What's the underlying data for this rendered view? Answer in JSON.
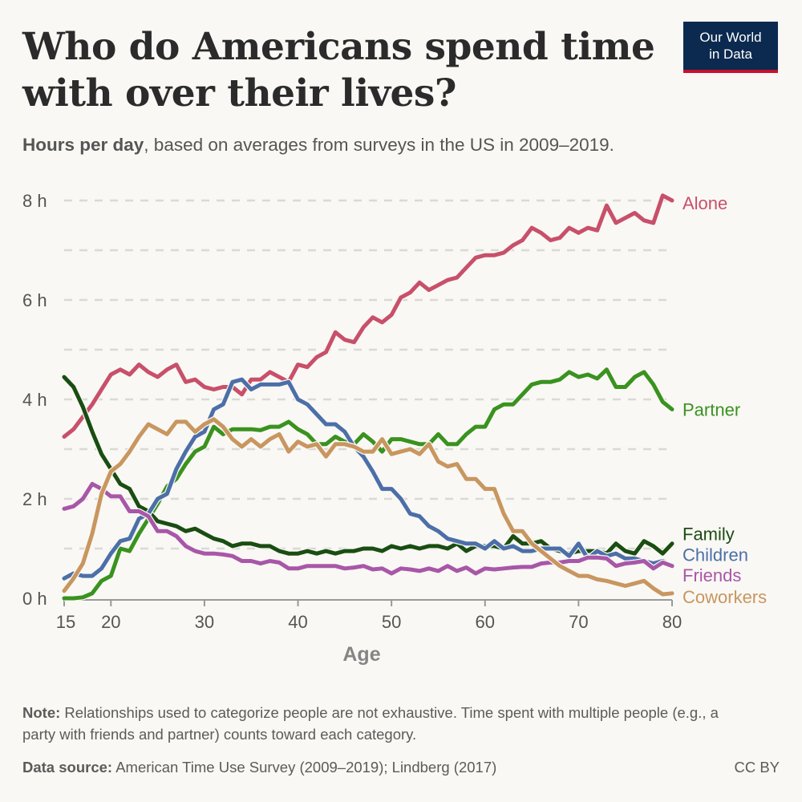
{
  "title": "Who do Americans spend time with over their lives?",
  "subtitle_bold": "Hours per day",
  "subtitle_rest": ", based on averages from surveys in the US in 2009–2019.",
  "logo": {
    "line1": "Our World",
    "line2": "in Data"
  },
  "note_label": "Note:",
  "note_text": " Relationships used to categorize people are not exhaustive. Time spent with multiple people (e.g., a party with friends and partner) counts toward each category.",
  "source_label": "Data source:",
  "source_text": " American Time Use Survey (2009–2019); Lindberg (2017)",
  "license": "CC BY",
  "chart_data": {
    "type": "line",
    "title": "Who do Americans spend time with over their lives?",
    "xlabel": "Age",
    "ylabel": "",
    "xlim": [
      15,
      80
    ],
    "ylim": [
      0,
      8
    ],
    "x_ticks": [
      15,
      20,
      30,
      40,
      50,
      60,
      70,
      80
    ],
    "y_ticks": [
      {
        "v": 0,
        "label": "0 h"
      },
      {
        "v": 2,
        "label": "2 h"
      },
      {
        "v": 4,
        "label": "4 h"
      },
      {
        "v": 6,
        "label": "6 h"
      },
      {
        "v": 8,
        "label": "8 h"
      }
    ],
    "grid": true,
    "legend": "inline-right",
    "x": [
      15,
      16,
      17,
      18,
      19,
      20,
      21,
      22,
      23,
      24,
      25,
      26,
      27,
      28,
      29,
      30,
      31,
      32,
      33,
      34,
      35,
      36,
      37,
      38,
      39,
      40,
      41,
      42,
      43,
      44,
      45,
      46,
      47,
      48,
      49,
      50,
      51,
      52,
      53,
      54,
      55,
      56,
      57,
      58,
      59,
      60,
      61,
      62,
      63,
      64,
      65,
      66,
      67,
      68,
      69,
      70,
      71,
      72,
      73,
      74,
      75,
      76,
      77,
      78,
      79,
      80
    ],
    "series": [
      {
        "name": "Alone",
        "color": "#c8506a",
        "label_y": 7.95,
        "values": [
          3.25,
          3.4,
          3.65,
          3.9,
          4.2,
          4.5,
          4.6,
          4.5,
          4.7,
          4.55,
          4.45,
          4.6,
          4.7,
          4.35,
          4.4,
          4.25,
          4.2,
          4.25,
          4.25,
          4.1,
          4.4,
          4.4,
          4.55,
          4.45,
          4.35,
          4.7,
          4.65,
          4.85,
          4.95,
          5.35,
          5.2,
          5.15,
          5.45,
          5.65,
          5.55,
          5.7,
          6.05,
          6.15,
          6.35,
          6.2,
          6.3,
          6.4,
          6.45,
          6.65,
          6.85,
          6.9,
          6.9,
          6.95,
          7.1,
          7.2,
          7.45,
          7.35,
          7.2,
          7.25,
          7.45,
          7.35,
          7.45,
          7.4,
          7.9,
          7.55,
          7.65,
          7.75,
          7.6,
          7.55,
          8.1,
          8.0
        ]
      },
      {
        "name": "Partner",
        "color": "#3a921f",
        "label_y": 3.8,
        "values": [
          0,
          0,
          0.02,
          0.1,
          0.35,
          0.45,
          1.0,
          0.95,
          1.3,
          1.6,
          1.9,
          2.25,
          2.4,
          2.7,
          2.95,
          3.05,
          3.45,
          3.3,
          3.4,
          3.4,
          3.4,
          3.38,
          3.45,
          3.45,
          3.55,
          3.4,
          3.3,
          3.1,
          3.1,
          3.25,
          3.15,
          3.1,
          3.3,
          3.15,
          2.95,
          3.2,
          3.2,
          3.15,
          3.1,
          3.1,
          3.3,
          3.1,
          3.1,
          3.3,
          3.45,
          3.45,
          3.8,
          3.9,
          3.9,
          4.1,
          4.3,
          4.35,
          4.35,
          4.4,
          4.55,
          4.45,
          4.5,
          4.42,
          4.6,
          4.25,
          4.25,
          4.45,
          4.55,
          4.3,
          3.95,
          3.8
        ]
      },
      {
        "name": "Family",
        "color": "#1a4d12",
        "label_y": 1.3,
        "values": [
          4.45,
          4.25,
          3.85,
          3.35,
          2.9,
          2.6,
          2.3,
          2.2,
          1.85,
          1.75,
          1.55,
          1.5,
          1.45,
          1.35,
          1.4,
          1.3,
          1.2,
          1.15,
          1.05,
          1.1,
          1.1,
          1.05,
          1.05,
          0.95,
          0.9,
          0.9,
          0.95,
          0.9,
          0.95,
          0.9,
          0.95,
          0.95,
          1.0,
          1.0,
          0.95,
          1.05,
          1.0,
          1.05,
          1.0,
          1.05,
          1.05,
          1.0,
          1.1,
          0.95,
          1.05,
          1.05,
          1.05,
          1.0,
          1.25,
          1.1,
          1.1,
          1.15,
          1.0,
          0.95,
          0.9,
          0.95,
          0.95,
          0.95,
          0.9,
          1.1,
          0.95,
          0.9,
          1.15,
          1.05,
          0.9,
          1.1
        ]
      },
      {
        "name": "Children",
        "color": "#4c6fa8",
        "label_y": 0.88,
        "values": [
          0.4,
          0.5,
          0.45,
          0.45,
          0.6,
          0.9,
          1.15,
          1.2,
          1.6,
          1.7,
          2.0,
          2.1,
          2.6,
          2.95,
          3.25,
          3.35,
          3.8,
          3.9,
          4.35,
          4.4,
          4.2,
          4.3,
          4.3,
          4.3,
          4.35,
          4.0,
          3.9,
          3.7,
          3.5,
          3.5,
          3.35,
          3.05,
          2.85,
          2.55,
          2.2,
          2.2,
          2.0,
          1.7,
          1.65,
          1.45,
          1.35,
          1.2,
          1.15,
          1.1,
          1.1,
          1.0,
          1.15,
          1.0,
          1.05,
          0.95,
          0.95,
          1.0,
          1.0,
          1.0,
          0.85,
          1.1,
          0.8,
          0.95,
          0.85,
          0.9,
          0.8,
          0.8,
          0.75,
          0.7,
          0.75,
          0.65
        ]
      },
      {
        "name": "Friends",
        "color": "#a857a8",
        "label_y": 0.47,
        "values": [
          1.8,
          1.85,
          2.0,
          2.3,
          2.2,
          2.05,
          2.05,
          1.75,
          1.75,
          1.65,
          1.35,
          1.35,
          1.25,
          1.05,
          0.95,
          0.9,
          0.9,
          0.88,
          0.85,
          0.75,
          0.75,
          0.7,
          0.75,
          0.72,
          0.6,
          0.6,
          0.65,
          0.65,
          0.65,
          0.65,
          0.6,
          0.62,
          0.65,
          0.58,
          0.6,
          0.5,
          0.6,
          0.58,
          0.55,
          0.6,
          0.55,
          0.65,
          0.55,
          0.62,
          0.5,
          0.6,
          0.58,
          0.6,
          0.62,
          0.63,
          0.63,
          0.7,
          0.72,
          0.72,
          0.75,
          0.75,
          0.82,
          0.82,
          0.8,
          0.65,
          0.7,
          0.72,
          0.75,
          0.6,
          0.72,
          0.65
        ]
      },
      {
        "name": "Coworkers",
        "color": "#c8965f",
        "label_y": 0.03,
        "values": [
          0.15,
          0.4,
          0.7,
          1.3,
          2.1,
          2.55,
          2.7,
          2.95,
          3.25,
          3.5,
          3.4,
          3.3,
          3.55,
          3.55,
          3.35,
          3.5,
          3.6,
          3.45,
          3.2,
          3.05,
          3.2,
          3.05,
          3.2,
          3.3,
          2.95,
          3.15,
          3.05,
          3.1,
          2.85,
          3.1,
          3.1,
          3.05,
          2.95,
          2.95,
          3.2,
          2.9,
          2.95,
          3.0,
          2.9,
          3.1,
          2.75,
          2.65,
          2.7,
          2.4,
          2.4,
          2.2,
          2.2,
          1.7,
          1.35,
          1.35,
          1.1,
          0.95,
          0.8,
          0.65,
          0.55,
          0.45,
          0.45,
          0.38,
          0.35,
          0.3,
          0.25,
          0.3,
          0.35,
          0.2,
          0.08,
          0.1
        ]
      }
    ]
  }
}
